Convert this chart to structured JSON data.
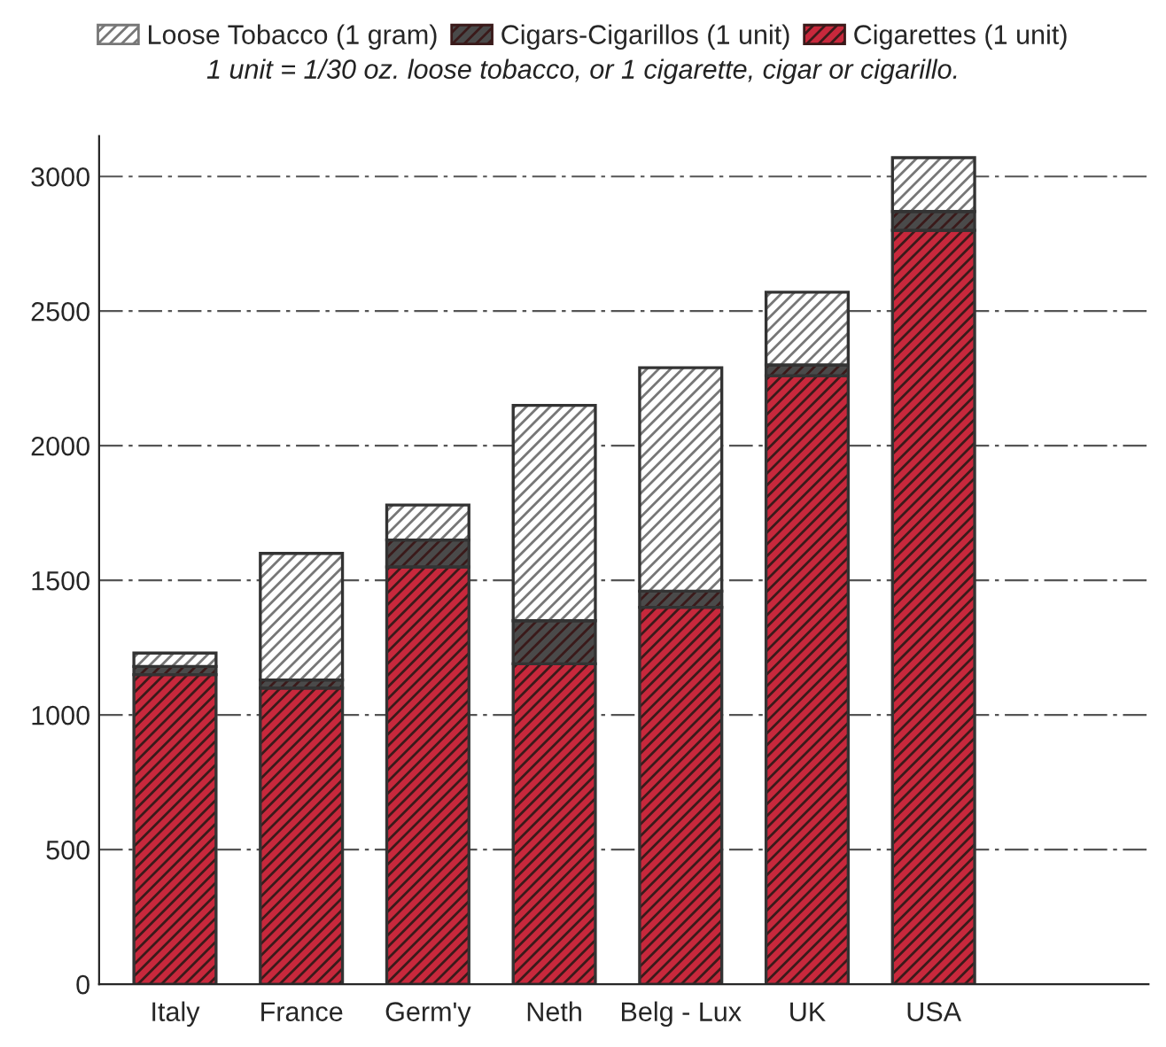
{
  "chart_data": {
    "type": "bar",
    "stacked": true,
    "subtitle": "1 unit = 1/30 oz. loose tobacco, or 1 cigarette, cigar or cigarillo.",
    "categories": [
      "Italy",
      "France",
      "Germ'y",
      "Neth",
      "Belg - Lux",
      "UK",
      "USA"
    ],
    "series": [
      {
        "name": "Cigarettes (1 unit)",
        "color": "#c8283c",
        "values": [
          1150,
          1100,
          1550,
          1190,
          1400,
          2260,
          2800
        ]
      },
      {
        "name": "Cigars-Cigarillos (1 unit)",
        "color": "#4a4a4a",
        "values": [
          30,
          30,
          100,
          160,
          60,
          40,
          70
        ]
      },
      {
        "name": "Loose Tobacco (1 gram)",
        "color": "#ffffff",
        "values": [
          50,
          470,
          130,
          800,
          830,
          270,
          200
        ]
      }
    ],
    "ylim": [
      0,
      3150
    ],
    "yticks": [
      0,
      500,
      1000,
      1500,
      2000,
      2500,
      3000
    ],
    "grid": "y",
    "legend": "top"
  }
}
